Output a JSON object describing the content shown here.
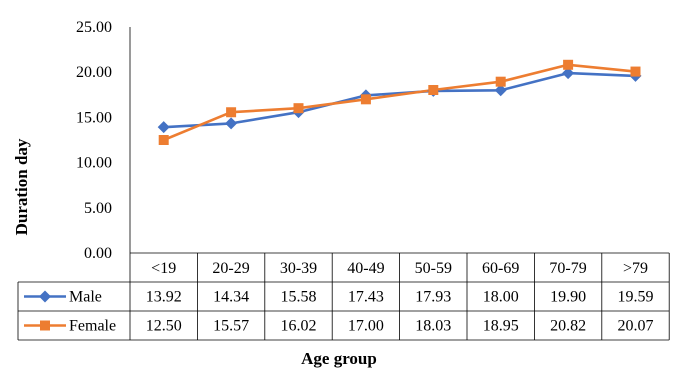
{
  "chart_data": {
    "type": "line",
    "categories": [
      "<19",
      "20-29",
      "30-39",
      "40-49",
      "50-59",
      "60-69",
      "70-79",
      ">79"
    ],
    "series": [
      {
        "name": "Male",
        "values": [
          13.92,
          14.34,
          15.58,
          17.43,
          17.93,
          18.0,
          19.9,
          19.59
        ],
        "value_labels": [
          "13.92",
          "14.34",
          "15.58",
          "17.43",
          "17.93",
          "18.00",
          "19.90",
          "19.59"
        ],
        "color": "#4472C4",
        "marker": "diamond"
      },
      {
        "name": "Female",
        "values": [
          12.5,
          15.57,
          16.02,
          17.0,
          18.03,
          18.95,
          20.82,
          20.07
        ],
        "value_labels": [
          "12.50",
          "15.57",
          "16.02",
          "17.00",
          "18.03",
          "18.95",
          "20.82",
          "20.07"
        ],
        "color": "#ED7D31",
        "marker": "square"
      }
    ],
    "xlabel": "Age group",
    "ylabel": "Duration day",
    "ylim": [
      0,
      25
    ],
    "yticks": [
      "0.00",
      "5.00",
      "10.00",
      "15.00",
      "20.00",
      "25.00"
    ],
    "ytick_values": [
      0,
      5,
      10,
      15,
      20,
      25
    ],
    "grid": false,
    "legend": "data-table"
  }
}
